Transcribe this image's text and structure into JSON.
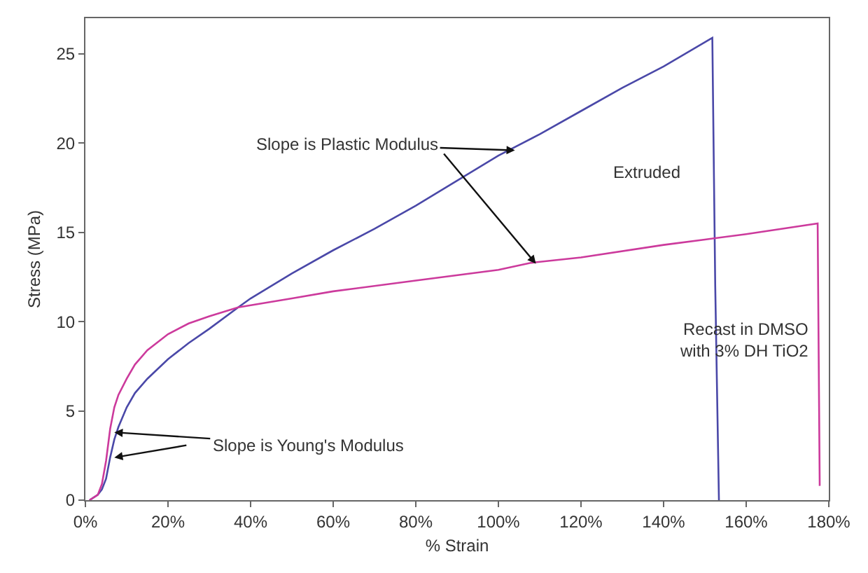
{
  "chart_data": {
    "type": "line",
    "xlabel": "% Strain",
    "ylabel": "Stress (MPa)",
    "xlim": [
      0,
      180
    ],
    "ylim": [
      0,
      27
    ],
    "xticks": [
      {
        "value": 0,
        "label": "0%"
      },
      {
        "value": 20,
        "label": "20%"
      },
      {
        "value": 40,
        "label": "40%"
      },
      {
        "value": 60,
        "label": "60%"
      },
      {
        "value": 80,
        "label": "80%"
      },
      {
        "value": 100,
        "label": "100%"
      },
      {
        "value": 120,
        "label": "120%"
      },
      {
        "value": 140,
        "label": "140%"
      },
      {
        "value": 160,
        "label": "160%"
      },
      {
        "value": 180,
        "label": "180%"
      }
    ],
    "yticks": [
      0,
      5,
      10,
      15,
      20,
      25
    ],
    "legend": false,
    "marker": "none",
    "line_style": "solid",
    "series": [
      {
        "name": "Extruded",
        "color": "#4a48a8",
        "x": [
          1,
          3,
          4,
          5,
          6,
          7,
          8,
          10,
          12,
          15,
          20,
          25,
          30,
          37,
          40,
          50,
          60,
          70,
          80,
          90,
          100,
          110,
          120,
          130,
          140,
          151.8,
          152.5,
          153.4
        ],
        "values": [
          0,
          0.3,
          0.6,
          1.2,
          2.4,
          3.4,
          4.1,
          5.2,
          6.0,
          6.8,
          7.9,
          8.8,
          9.6,
          10.8,
          11.3,
          12.7,
          14.0,
          15.2,
          16.5,
          17.9,
          19.3,
          20.5,
          21.8,
          23.1,
          24.3,
          25.9,
          12,
          0
        ]
      },
      {
        "name": "Recast in DMSO with 3% DH TiO2",
        "color": "#cc3a9c",
        "x": [
          1,
          3,
          4,
          5,
          6,
          7,
          8,
          10,
          12,
          15,
          20,
          25,
          30,
          37,
          50,
          60,
          80,
          100,
          108,
          120,
          140,
          150,
          160,
          177.3,
          177.8
        ],
        "values": [
          0,
          0.3,
          0.9,
          2.2,
          4.0,
          5.2,
          5.9,
          6.8,
          7.6,
          8.4,
          9.3,
          9.9,
          10.3,
          10.8,
          11.3,
          11.7,
          12.3,
          12.9,
          13.3,
          13.6,
          14.3,
          14.6,
          14.9,
          15.5,
          0.8
        ]
      }
    ],
    "annotations": [
      {
        "text": "Slope is Plastic Modulus",
        "x": 104,
        "y": 19.6
      },
      {
        "text": "Slope is Young's Modulus",
        "x": 7,
        "y": 3.8
      }
    ]
  }
}
